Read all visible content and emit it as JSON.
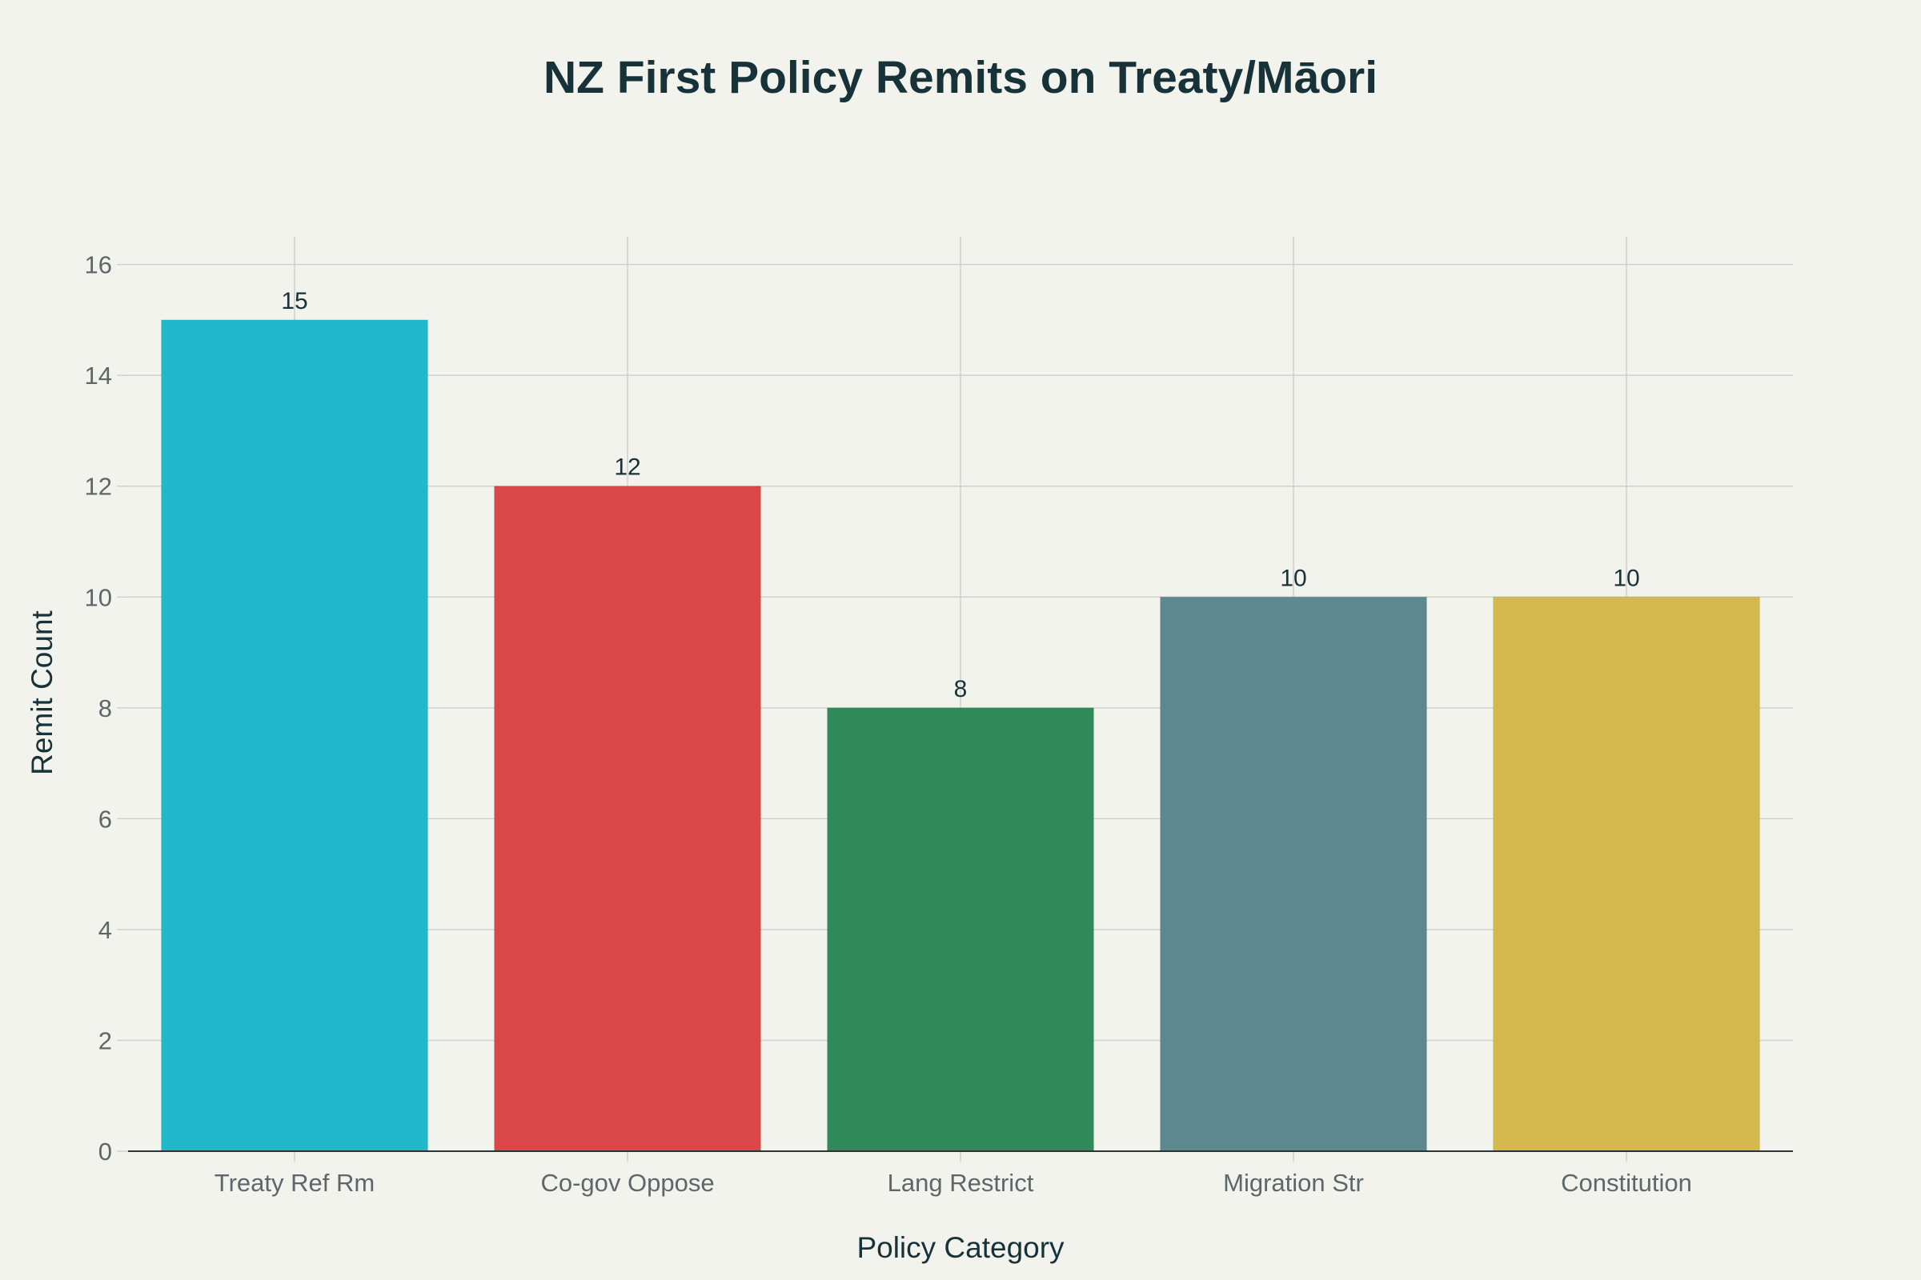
{
  "chart_data": {
    "type": "bar",
    "title": "NZ First Policy Remits on Treaty/Māori",
    "xlabel": "Policy Category",
    "ylabel": "Remit Count",
    "categories": [
      "Treaty Ref Rm",
      "Co-gov Oppose",
      "Lang Restrict",
      "Migration Str",
      "Constitution"
    ],
    "values": [
      15,
      12,
      8,
      10,
      10
    ],
    "colors": [
      "#21b8cc",
      "#db4649",
      "#2e8a58",
      "#5e8890",
      "#d3b94e"
    ],
    "ylim": [
      0,
      16.5
    ],
    "yticks": [
      0,
      2,
      4,
      6,
      8,
      10,
      12,
      14,
      16
    ],
    "grid": true,
    "legend": "none"
  }
}
